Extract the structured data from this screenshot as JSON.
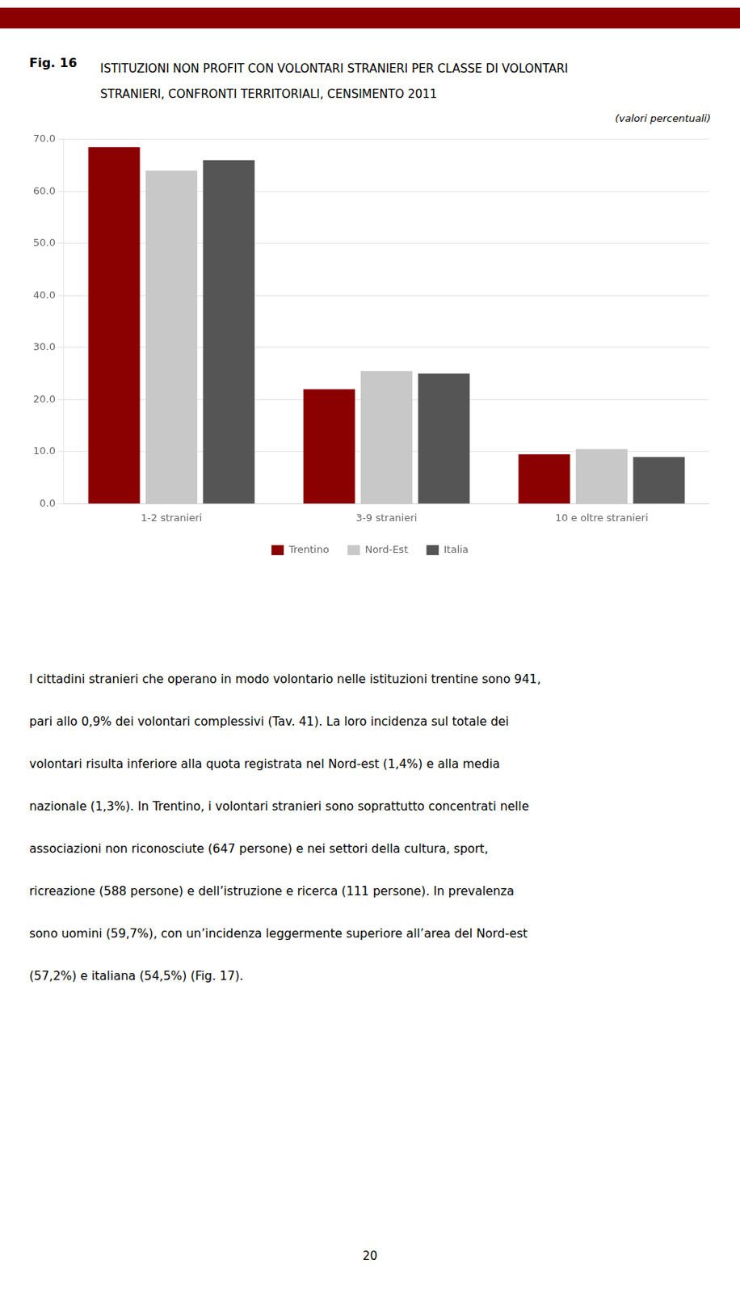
{
  "chart_data": {
    "type": "bar",
    "title": [
      "ISTITUZIONI NON PROFIT CON VOLONTARI STRANIERI PER CLASSE DI VOLONTARI",
      "STRANIERI, CONFRONTI TERRITORIALI, CENSIMENTO 2011"
    ],
    "subtitle": "(valori percentuali)",
    "categories": [
      "1-2 stranieri",
      "3-9 stranieri",
      "10 e oltre stranieri"
    ],
    "series": [
      {
        "name": "Trentino",
        "color": "#8B0000",
        "values": [
          68.5,
          22.0,
          9.5
        ]
      },
      {
        "name": "Nord-Est",
        "color": "#C8C8C8",
        "values": [
          64.0,
          25.5,
          10.5
        ]
      },
      {
        "name": "Italia",
        "color": "#555555",
        "values": [
          66.0,
          25.0,
          9.0
        ]
      }
    ],
    "ylim": [
      0,
      70
    ],
    "yticks": [
      {
        "value": 0,
        "label": "0.0"
      },
      {
        "value": 10,
        "label": "10.0"
      },
      {
        "value": 20,
        "label": "20.0"
      },
      {
        "value": 30,
        "label": "30.0"
      },
      {
        "value": 40,
        "label": "40.0"
      },
      {
        "value": 50,
        "label": "50.0"
      },
      {
        "value": 60,
        "label": "60.0"
      },
      {
        "value": 70,
        "label": "70.0"
      }
    ],
    "grid": true,
    "legend": "bottom",
    "annotations": [
      "Fig. 16",
      "I cittadini stranieri che operano in modo volontario nelle istituzioni trentine sono 941,",
      "pari allo 0,9% dei volontari complessivi (Tav. 41). La loro incidenza sul totale dei",
      "volontari risulta inferiore alla quota registrata nel Nord-est (1,4%) e alla media",
      "nazionale (1,3%). In Trentino, i volontari stranieri sono soprattutto concentrati nelle",
      "associazioni non riconosciute (647 persone) e nei settori della cultura, sport,",
      "ricreazione (588 persone) e dell’istruzione e ricerca (111 persone). In prevalenza",
      "sono uomini (59,7%), con un’incidenza leggermente superiore all’area del Nord-est",
      "(57,2%) e italiana (54,5%) (Fig. 17)."
    ],
    "page_number": "20"
  }
}
